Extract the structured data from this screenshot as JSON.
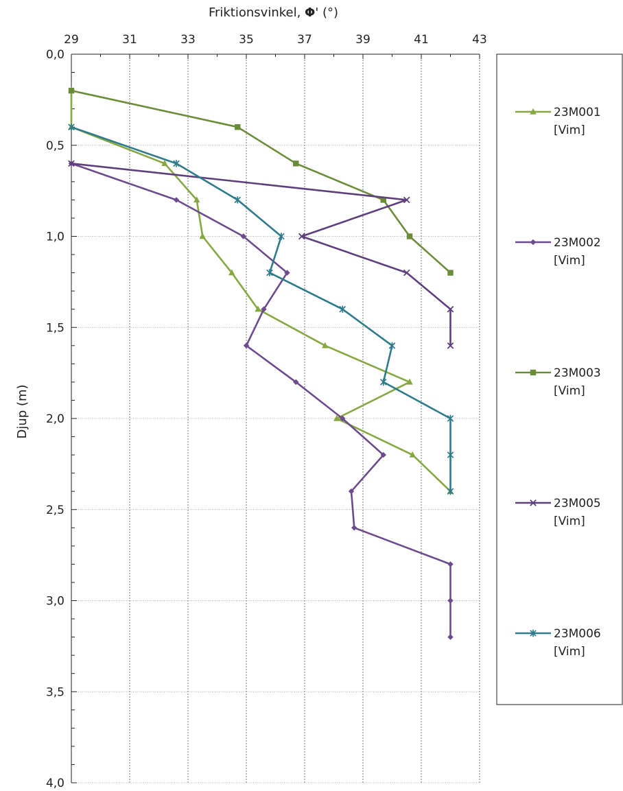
{
  "chart_data": {
    "type": "line",
    "title": "",
    "xlabel": {
      "prefix": "Friktionsvinkel, ",
      "symbol": "Φ",
      "suffix": "' (°)"
    },
    "ylabel": "Djup (m)",
    "xlim": [
      29,
      43
    ],
    "ylim": [
      0,
      4
    ],
    "y_inverted": true,
    "x_axis_position": "top",
    "x_ticks": [
      29,
      31,
      33,
      35,
      37,
      39,
      41,
      43
    ],
    "x_tick_labels": [
      "29",
      "31",
      "33",
      "35",
      "37",
      "39",
      "41",
      "43"
    ],
    "y_ticks": [
      0,
      0.5,
      1,
      1.5,
      2,
      2.5,
      3,
      3.5,
      4
    ],
    "y_tick_labels": [
      "0,0",
      "0,5",
      "1,0",
      "1,5",
      "2,0",
      "2,5",
      "3,0",
      "3,5",
      "4,0"
    ],
    "grid": true,
    "legend_position": "right",
    "series": [
      {
        "name": "23M001",
        "sub": "[Vim]",
        "color": "#86a843",
        "marker": "triangle",
        "points": [
          [
            29.0,
            0.2
          ],
          [
            29.0,
            0.4
          ],
          [
            32.2,
            0.6
          ],
          [
            33.3,
            0.8
          ],
          [
            33.5,
            1.0
          ],
          [
            34.5,
            1.2
          ],
          [
            35.4,
            1.4
          ],
          [
            37.7,
            1.6
          ],
          [
            40.6,
            1.8
          ],
          [
            38.1,
            2.0
          ],
          [
            40.7,
            2.2
          ],
          [
            42.0,
            2.4
          ]
        ]
      },
      {
        "name": "23M002",
        "sub": "[Vim]",
        "color": "#6b4b8e",
        "marker": "diamond",
        "points": [
          [
            29.0,
            0.6
          ],
          [
            32.6,
            0.8
          ],
          [
            34.9,
            1.0
          ],
          [
            36.4,
            1.2
          ],
          [
            35.6,
            1.4
          ],
          [
            35.0,
            1.6
          ],
          [
            36.7,
            1.8
          ],
          [
            38.3,
            2.0
          ],
          [
            39.7,
            2.2
          ],
          [
            38.6,
            2.4
          ],
          [
            38.7,
            2.6
          ],
          [
            42.0,
            2.8
          ],
          [
            42.0,
            3.0
          ],
          [
            42.0,
            3.2
          ]
        ]
      },
      {
        "name": "23M003",
        "sub": "[Vim]",
        "color": "#6b8c38",
        "marker": "square",
        "points": [
          [
            29.0,
            0.2
          ],
          [
            34.7,
            0.4
          ],
          [
            36.7,
            0.6
          ],
          [
            39.7,
            0.8
          ],
          [
            40.6,
            1.0
          ],
          [
            42.0,
            1.2
          ]
        ]
      },
      {
        "name": "23M005",
        "sub": "[Vim]",
        "color": "#5e3f7e",
        "marker": "x",
        "points": [
          [
            29.0,
            0.6
          ],
          [
            40.5,
            0.8
          ],
          [
            36.9,
            1.0
          ],
          [
            40.5,
            1.2
          ],
          [
            42.0,
            1.4
          ],
          [
            42.0,
            1.6
          ]
        ]
      },
      {
        "name": "23M006",
        "sub": "[Vim]",
        "color": "#2f7b8c",
        "marker": "star",
        "points": [
          [
            29.0,
            0.4
          ],
          [
            32.6,
            0.6
          ],
          [
            34.7,
            0.8
          ],
          [
            36.2,
            1.0
          ],
          [
            35.8,
            1.2
          ],
          [
            38.3,
            1.4
          ],
          [
            40.0,
            1.6
          ],
          [
            39.7,
            1.8
          ],
          [
            42.0,
            2.0
          ],
          [
            42.0,
            2.2
          ],
          [
            42.0,
            2.4
          ]
        ]
      }
    ]
  }
}
